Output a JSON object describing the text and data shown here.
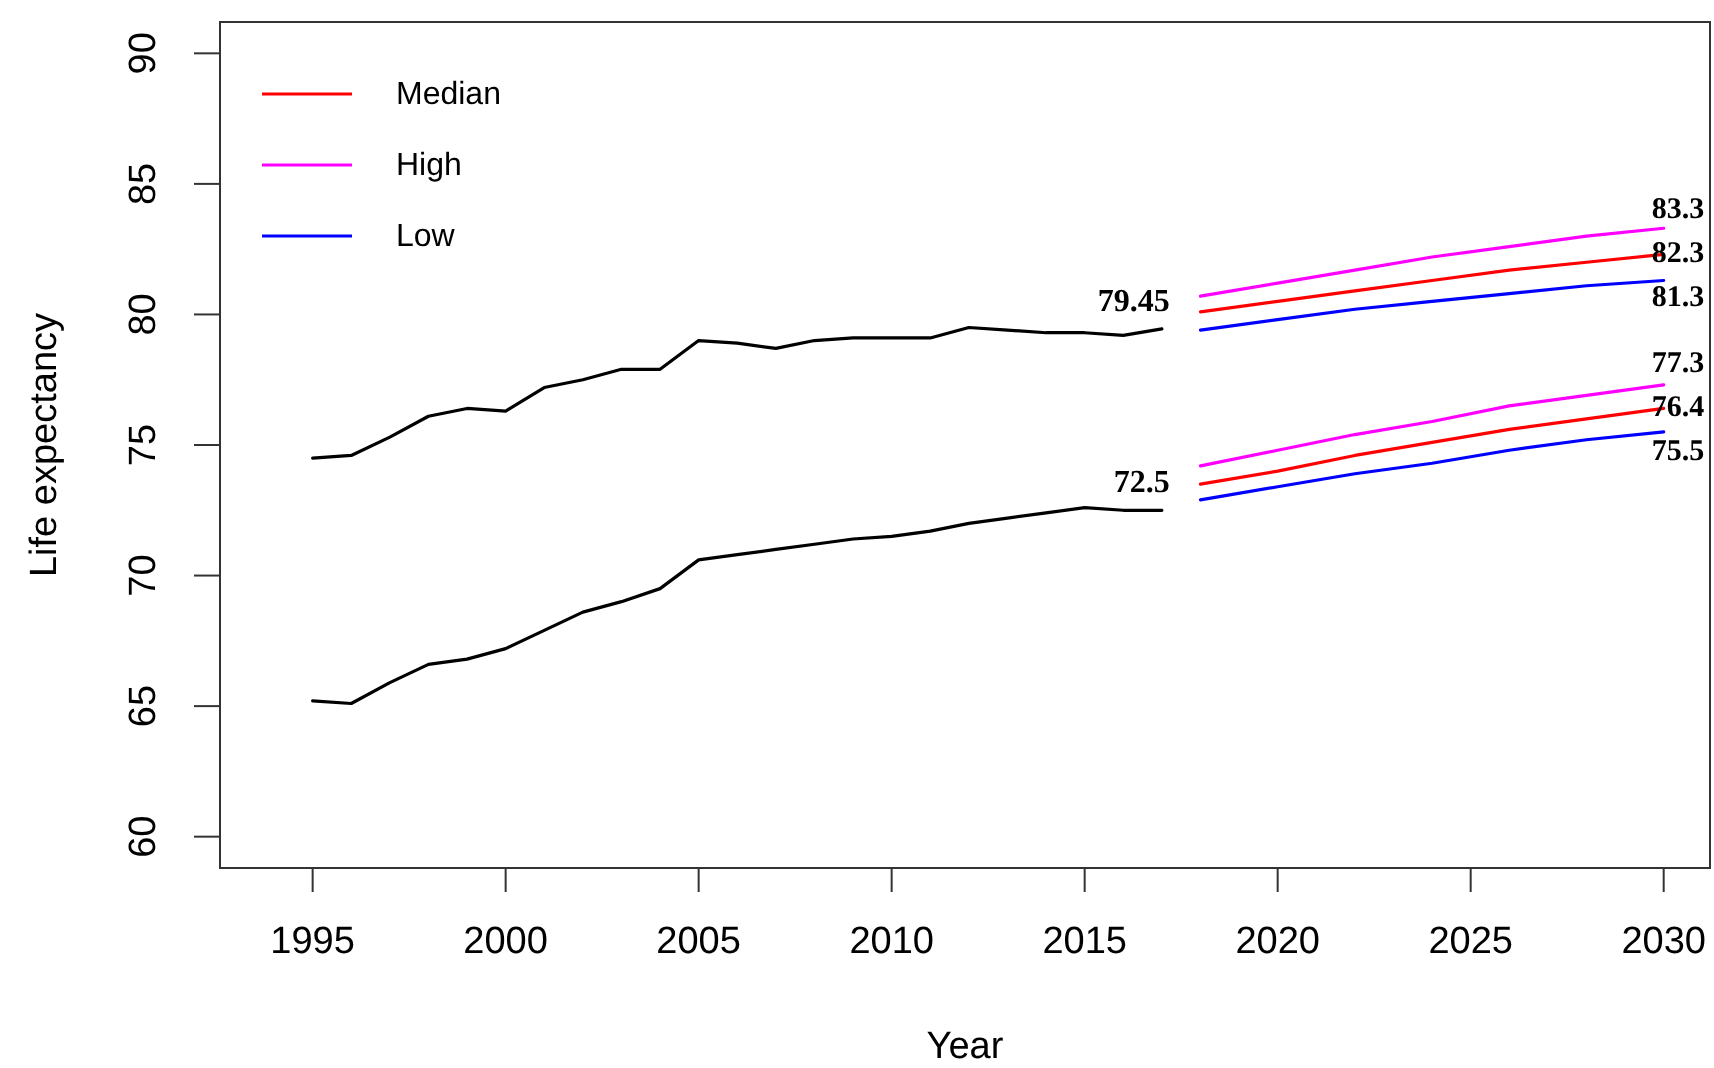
{
  "chart_data": {
    "type": "line",
    "xlabel": "Year",
    "ylabel": "Life expectancy",
    "xlim": [
      1992.6,
      2031.2
    ],
    "ylim": [
      58.8,
      91.2
    ],
    "xticks": [
      1995,
      2000,
      2005,
      2010,
      2015,
      2020,
      2025,
      2030
    ],
    "yticks": [
      60,
      65,
      70,
      75,
      80,
      85,
      90
    ],
    "legend": "top left",
    "series": [
      {
        "color": "#000000",
        "x": [
          1995,
          1996,
          1997,
          1998,
          1999,
          2000,
          2001,
          2002,
          2003,
          2004,
          2005,
          2006,
          2007,
          2008,
          2009,
          2010,
          2011,
          2012,
          2013,
          2014,
          2015,
          2016,
          2017
        ],
        "values": [
          74.5,
          74.6,
          75.3,
          76.1,
          76.4,
          76.3,
          77.2,
          77.5,
          77.9,
          77.9,
          79.0,
          78.9,
          78.7,
          79.0,
          79.1,
          79.1,
          79.1,
          79.5,
          79.4,
          79.3,
          79.3,
          79.2,
          79.45
        ],
        "value_labels": [
          null,
          null,
          null,
          null,
          null,
          null,
          null,
          null,
          null,
          null,
          null,
          null,
          null,
          null,
          null,
          null,
          null,
          null,
          null,
          null,
          null,
          null,
          "79.45"
        ]
      },
      {
        "color": "#000000",
        "x": [
          1995,
          1996,
          1997,
          1998,
          1999,
          2000,
          2001,
          2002,
          2003,
          2004,
          2005,
          2006,
          2007,
          2008,
          2009,
          2010,
          2011,
          2012,
          2013,
          2014,
          2015,
          2016,
          2017
        ],
        "values": [
          65.2,
          65.1,
          65.9,
          66.6,
          66.8,
          67.2,
          67.9,
          68.6,
          69.0,
          69.5,
          70.6,
          70.8,
          71.0,
          71.2,
          71.4,
          71.5,
          71.7,
          72.0,
          72.2,
          72.4,
          72.6,
          72.5,
          72.5
        ],
        "value_labels": [
          null,
          null,
          null,
          null,
          null,
          null,
          null,
          null,
          null,
          null,
          null,
          null,
          null,
          null,
          null,
          null,
          null,
          null,
          null,
          null,
          null,
          null,
          "72.5"
        ]
      },
      {
        "name": "Median",
        "color": "#ff0000",
        "x": [
          2018,
          2020,
          2022,
          2024,
          2026,
          2028,
          2030
        ],
        "values": [
          80.1,
          80.5,
          80.9,
          81.3,
          81.7,
          82.0,
          82.3
        ],
        "value_labels": [
          null,
          null,
          null,
          null,
          null,
          null,
          "82.3"
        ]
      },
      {
        "name": "High",
        "color": "#ff00ff",
        "x": [
          2018,
          2020,
          2022,
          2024,
          2026,
          2028,
          2030
        ],
        "values": [
          80.7,
          81.2,
          81.7,
          82.2,
          82.6,
          83.0,
          83.3
        ],
        "value_labels": [
          null,
          null,
          null,
          null,
          null,
          null,
          "83.3"
        ]
      },
      {
        "name": "Low",
        "color": "#0000ff",
        "x": [
          2018,
          2020,
          2022,
          2024,
          2026,
          2028,
          2030
        ],
        "values": [
          79.4,
          79.8,
          80.2,
          80.5,
          80.8,
          81.1,
          81.3
        ],
        "value_labels": [
          null,
          null,
          null,
          null,
          null,
          null,
          "81.3"
        ]
      },
      {
        "color": "#ff0000",
        "x": [
          2018,
          2020,
          2022,
          2024,
          2026,
          2028,
          2030
        ],
        "values": [
          73.5,
          74.0,
          74.6,
          75.1,
          75.6,
          76.0,
          76.4
        ],
        "value_labels": [
          null,
          null,
          null,
          null,
          null,
          null,
          "76.4"
        ]
      },
      {
        "color": "#ff00ff",
        "x": [
          2018,
          2020,
          2022,
          2024,
          2026,
          2028,
          2030
        ],
        "values": [
          74.2,
          74.8,
          75.4,
          75.9,
          76.5,
          76.9,
          77.3
        ],
        "value_labels": [
          null,
          null,
          null,
          null,
          null,
          null,
          "77.3"
        ]
      },
      {
        "color": "#0000ff",
        "x": [
          2018,
          2020,
          2022,
          2024,
          2026,
          2028,
          2030
        ],
        "values": [
          72.9,
          73.4,
          73.9,
          74.3,
          74.8,
          75.2,
          75.5
        ],
        "value_labels": [
          null,
          null,
          null,
          null,
          null,
          null,
          "75.5"
        ]
      }
    ]
  }
}
